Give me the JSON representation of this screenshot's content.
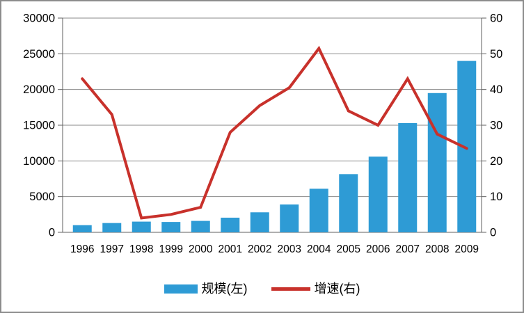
{
  "window": {
    "background": "#ffffff",
    "border_color": "#8c8c8c"
  },
  "colors": {
    "bar": "#2e9bd5",
    "line": "#c8312b",
    "gridline": "#8a8a8a",
    "axis": "#5f5f5f",
    "text": "#000000"
  },
  "chart_data": {
    "type": "combo",
    "subtypes": [
      "bar",
      "line"
    ],
    "title": "",
    "grid": true,
    "legend_position": "bottom",
    "categories": [
      "1996",
      "1997",
      "1998",
      "1999",
      "2000",
      "2001",
      "2002",
      "2003",
      "2004",
      "2005",
      "2006",
      "2007",
      "2008",
      "2009"
    ],
    "series": [
      {
        "name": "规模(左)",
        "type": "bar",
        "axis": "left",
        "color": "#2e9bd5",
        "values": [
          1000,
          1300,
          1500,
          1450,
          1600,
          2050,
          2800,
          3900,
          6100,
          8150,
          10600,
          15300,
          19500,
          24000
        ]
      },
      {
        "name": "增速(右)",
        "type": "line",
        "axis": "right",
        "color": "#c8312b",
        "values": [
          43,
          33,
          4,
          5,
          7,
          28,
          35.5,
          40.5,
          51.5,
          34,
          30,
          43,
          27.5,
          23.5
        ]
      }
    ],
    "left_axis": {
      "min": 0,
      "max": 30000,
      "step": 5000,
      "tick_labels": [
        "0",
        "5000",
        "10000",
        "15000",
        "20000",
        "25000",
        "30000"
      ]
    },
    "right_axis": {
      "min": 0,
      "max": 60,
      "step": 10,
      "tick_labels": [
        "0",
        "10",
        "20",
        "30",
        "40",
        "50",
        "60"
      ]
    }
  },
  "legend": {
    "items": [
      {
        "label": "规模(左)",
        "swatch": "bar",
        "color": "#2e9bd5"
      },
      {
        "label": "增速(右)",
        "swatch": "line",
        "color": "#c8312b"
      }
    ]
  }
}
